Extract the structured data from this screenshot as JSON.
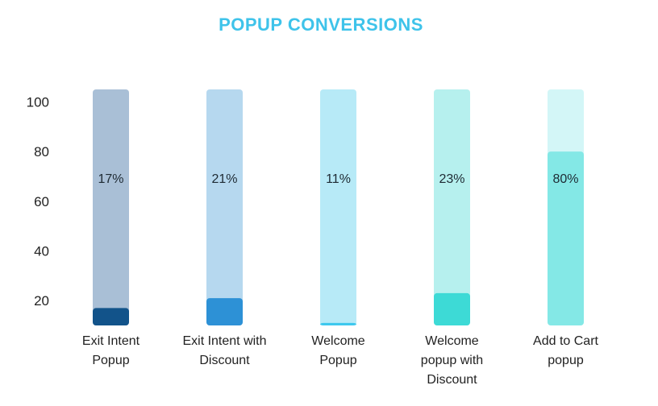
{
  "chart_data": {
    "type": "bar",
    "title": "POPUP CONVERSIONS",
    "xlabel": "",
    "ylabel": "",
    "ylim": [
      10,
      105
    ],
    "y_ticks": [
      20,
      40,
      60,
      80,
      100
    ],
    "grid": false,
    "legend": "none",
    "categories": [
      [
        "Exit Intent",
        "Popup"
      ],
      [
        "Exit Intent with",
        "Discount"
      ],
      [
        "Welcome",
        "Popup"
      ],
      [
        "Welcome",
        "popup with",
        "Discount"
      ],
      [
        "Add to Cart",
        "popup"
      ]
    ],
    "values": [
      17,
      21,
      11,
      23,
      80
    ],
    "data_labels": [
      "17%",
      "21%",
      "11%",
      "23%",
      "80%"
    ],
    "background_values": [
      105,
      105,
      105,
      105,
      105
    ],
    "colors": {
      "title": "#3ec3ea",
      "fill": [
        "#12538a",
        "#2d91d6",
        "#3ec8ee",
        "#3ddad6",
        "#84e8e6"
      ],
      "track": [
        "#a9bfd6",
        "#b6d8ef",
        "#b7eaf7",
        "#b6f0ee",
        "#d3f6f7"
      ]
    }
  }
}
